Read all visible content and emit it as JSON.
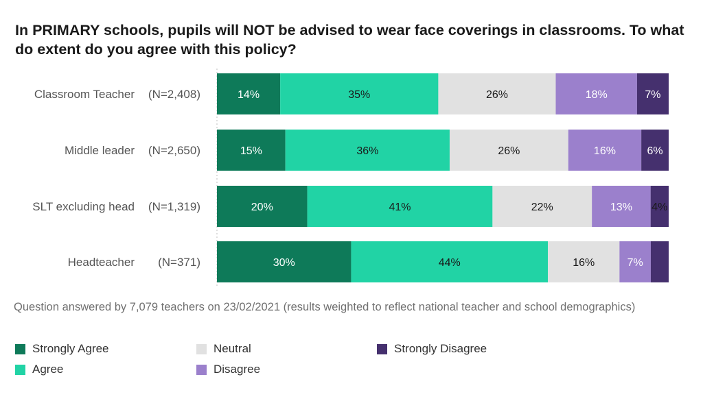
{
  "chart_data": {
    "type": "bar",
    "orientation": "horizontal",
    "stacked": true,
    "title": "In PRIMARY schools, pupils will NOT be advised to wear face coverings in classrooms. To what do extent do you agree with this policy?",
    "categories": [
      {
        "name": "Classroom Teacher",
        "n": "(N=2,408)"
      },
      {
        "name": "Middle leader",
        "n": "(N=2,650)"
      },
      {
        "name": "SLT excluding head",
        "n": "(N=1,319)"
      },
      {
        "name": "Headteacher",
        "n": "(N=371)"
      }
    ],
    "series": [
      {
        "name": "Strongly Agree",
        "color": "#0E7A59",
        "values": [
          14,
          15,
          20,
          30
        ],
        "labels": [
          "14%",
          "15%",
          "20%",
          "30%"
        ],
        "label_color": "#ffffff"
      },
      {
        "name": "Agree",
        "color": "#21D3A5",
        "values": [
          35,
          36,
          41,
          44
        ],
        "labels": [
          "35%",
          "36%",
          "41%",
          "44%"
        ],
        "label_color": "#1a1a1a"
      },
      {
        "name": "Neutral",
        "color": "#E1E1E1",
        "values": [
          26,
          26,
          22,
          16
        ],
        "labels": [
          "26%",
          "26%",
          "22%",
          "16%"
        ],
        "label_color": "#1a1a1a"
      },
      {
        "name": "Disagree",
        "color": "#9B80CC",
        "values": [
          18,
          16,
          13,
          7
        ],
        "labels": [
          "18%",
          "16%",
          "13%",
          "7%"
        ],
        "label_color": "#ffffff"
      },
      {
        "name": "Strongly Disagree",
        "color": "#45306E",
        "values": [
          7,
          6,
          4,
          4
        ],
        "labels": [
          "7%",
          "6%",
          "4%",
          ""
        ],
        "label_color": "#ffffff"
      }
    ],
    "xlim": [
      0,
      100
    ],
    "legend_position": "bottom"
  },
  "footnote": "Question answered by 7,079 teachers on 23/02/2021 (results weighted to reflect national teacher and school demographics)"
}
